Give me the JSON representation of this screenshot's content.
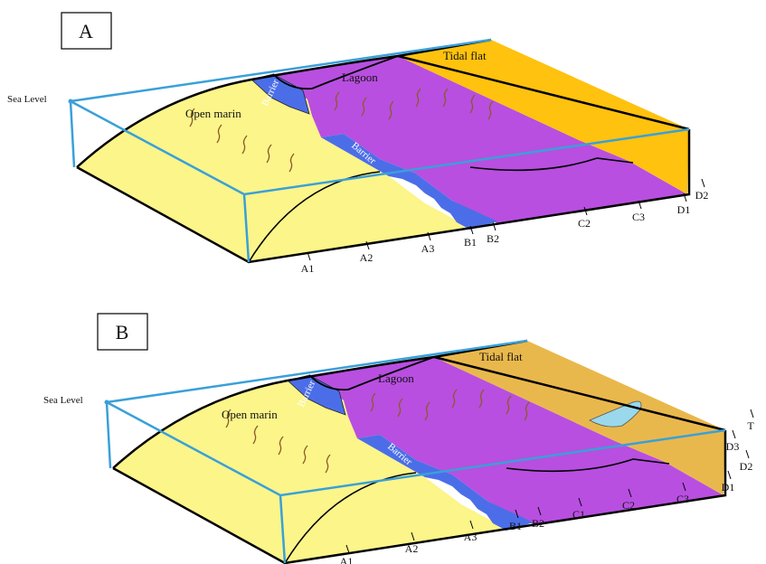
{
  "panels": [
    {
      "label": "A",
      "sea_level": "Sea Level",
      "zones": {
        "open_marine": "Open marin",
        "lagoon": "Lagoon",
        "tidal_flat": "Tidal flat",
        "barrier_1": "Barrier",
        "barrier_2": "Barrier"
      },
      "facies": [
        "A1",
        "A2",
        "A3",
        "B1",
        "B2",
        "C2",
        "C3",
        "D1",
        "D2"
      ]
    },
    {
      "label": "B",
      "sea_level": "Sea Level",
      "zones": {
        "open_marine": "Open marin",
        "lagoon": "Lagoon",
        "tidal_flat": "Tidal flat",
        "barrier_1": "Barrier",
        "barrier_2": "Barrier"
      },
      "facies": [
        "A1",
        "A2",
        "A3",
        "B1",
        "B2",
        "C1",
        "C2",
        "C3",
        "D1",
        "D2",
        "D3",
        "T"
      ]
    }
  ]
}
